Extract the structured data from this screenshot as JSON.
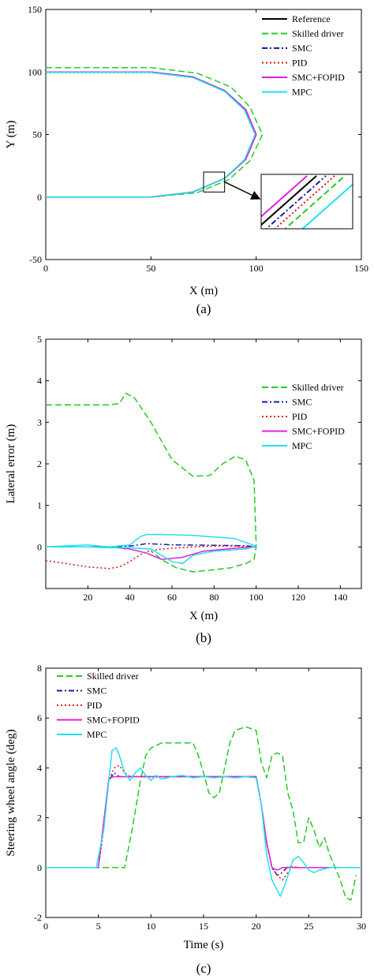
{
  "figure_labels": {
    "a": "(a)",
    "b": "(b)",
    "c": "(c)"
  },
  "colors": {
    "Reference": "#000000",
    "Skilled driver": "#22cc22",
    "SMC": "#1a1aa8",
    "PID": "#e01010",
    "SMC+FOPID": "#e020e0",
    "MPC": "#20e0f0"
  },
  "chart_data": [
    {
      "type": "line",
      "title": "",
      "xlabel": "X (m)",
      "ylabel": "Y (m)",
      "xlim": [
        0,
        150
      ],
      "ylim": [
        -50,
        150
      ],
      "xticks": [
        0,
        50,
        100,
        150
      ],
      "yticks": [
        -50,
        0,
        50,
        100,
        150
      ],
      "grid": false,
      "legend_position": "top-right",
      "legend": [
        "Reference",
        "Skilled driver",
        "SMC",
        "PID",
        "SMC+FOPID",
        "MPC"
      ],
      "inset": {
        "zoom_box_x": [
          75,
          85
        ],
        "zoom_box_y": [
          4,
          20
        ],
        "arrow_to": "bottom-right inset"
      },
      "series": [
        {
          "name": "Reference",
          "style": "solid",
          "x": [
            0,
            50,
            70,
            85,
            95,
            100,
            95,
            85,
            70,
            50,
            0
          ],
          "y": [
            100,
            100,
            96,
            85,
            70,
            50,
            30,
            15,
            4,
            0,
            0
          ]
        },
        {
          "name": "Skilled driver",
          "style": "dashed",
          "x": [
            0,
            50,
            72,
            88,
            97,
            103,
            97,
            87,
            72,
            50,
            0
          ],
          "y": [
            103.5,
            103.5,
            99,
            88,
            72,
            50,
            29,
            14,
            3.5,
            0,
            0
          ]
        },
        {
          "name": "SMC",
          "style": "dashdot",
          "x": [
            0,
            50,
            70,
            85,
            95,
            100,
            95,
            85,
            70,
            50,
            0
          ],
          "y": [
            100,
            100,
            96,
            85,
            70,
            50,
            30,
            15,
            4,
            0,
            0
          ]
        },
        {
          "name": "PID",
          "style": "dotted",
          "x": [
            0,
            50,
            70,
            85,
            95,
            100,
            95,
            85,
            70,
            50,
            0
          ],
          "y": [
            99.5,
            99.5,
            95.5,
            84.5,
            69.5,
            50,
            30,
            15,
            4,
            0,
            0
          ]
        },
        {
          "name": "SMC+FOPID",
          "style": "solid",
          "x": [
            0,
            50,
            70,
            85,
            95,
            100,
            95,
            85,
            70,
            50,
            0
          ],
          "y": [
            100,
            100,
            96,
            85,
            70,
            50,
            30,
            15,
            4,
            0,
            0
          ]
        },
        {
          "name": "MPC",
          "style": "solid",
          "x": [
            0,
            50,
            70,
            85,
            94.5,
            99.5,
            94.5,
            85,
            70,
            50,
            0
          ],
          "y": [
            99.7,
            99.7,
            95.5,
            84.5,
            69.5,
            50,
            30,
            15,
            4,
            0,
            0
          ]
        }
      ]
    },
    {
      "type": "line",
      "title": "",
      "xlabel": "X (m)",
      "ylabel": "Lateral error (m)",
      "xlim": [
        0,
        150
      ],
      "ylim": [
        -1,
        5
      ],
      "xticks": [
        20,
        40,
        60,
        80,
        100,
        120,
        140
      ],
      "yticks": [
        0,
        1,
        2,
        3,
        4,
        5
      ],
      "grid": false,
      "legend_position": "top-right",
      "legend": [
        "Skilled driver",
        "SMC",
        "PID",
        "SMC+FOPID",
        "MPC"
      ],
      "series": [
        {
          "name": "Skilled driver",
          "style": "dashed",
          "x": [
            0,
            30,
            35,
            38,
            42,
            50,
            60,
            70,
            78,
            84,
            90,
            95,
            99,
            100,
            99,
            95,
            88,
            80,
            70,
            62,
            55,
            50
          ],
          "y": [
            3.42,
            3.42,
            3.45,
            3.7,
            3.6,
            3.0,
            2.1,
            1.7,
            1.72,
            2.0,
            2.18,
            2.1,
            1.6,
            0.0,
            -0.3,
            -0.4,
            -0.5,
            -0.55,
            -0.6,
            -0.5,
            -0.3,
            -0.1
          ]
        },
        {
          "name": "SMC",
          "style": "dashdot",
          "x": [
            0,
            30,
            40,
            48,
            60,
            80,
            95,
            100
          ],
          "y": [
            0.0,
            0.0,
            0.02,
            0.08,
            0.05,
            0.04,
            0.03,
            0.0
          ]
        },
        {
          "name": "PID",
          "style": "dotted",
          "x": [
            0,
            10,
            20,
            30,
            35,
            40,
            45,
            50,
            60,
            70,
            80,
            90,
            100
          ],
          "y": [
            -0.33,
            -0.4,
            -0.48,
            -0.52,
            -0.48,
            -0.35,
            -0.18,
            -0.08,
            -0.03,
            0.0,
            0.02,
            0.02,
            0.0
          ]
        },
        {
          "name": "SMC+FOPID",
          "style": "solid",
          "x": [
            0,
            30,
            40,
            48,
            55,
            65,
            75,
            90,
            100
          ],
          "y": [
            0.0,
            0.0,
            -0.05,
            -0.15,
            -0.3,
            -0.25,
            -0.1,
            -0.03,
            0.0
          ]
        },
        {
          "name": "MPC",
          "style": "solid",
          "x": [
            0,
            20,
            30,
            40,
            45,
            48,
            55,
            70,
            90,
            100,
            95,
            80,
            70,
            65,
            60,
            50,
            40,
            30,
            20,
            10,
            0
          ],
          "y": [
            0.0,
            0.05,
            0.0,
            0.05,
            0.25,
            0.3,
            0.3,
            0.28,
            0.2,
            0.02,
            -0.05,
            -0.1,
            -0.2,
            -0.4,
            -0.35,
            -0.05,
            -0.02,
            -0.02,
            0.0,
            0.0,
            0.0
          ]
        }
      ]
    },
    {
      "type": "line",
      "title": "",
      "xlabel": "Time (s)",
      "ylabel": "Steering wheel angle (deg)",
      "xlim": [
        0,
        30
      ],
      "ylim": [
        -2,
        8
      ],
      "xticks": [
        0,
        5,
        10,
        15,
        20,
        25,
        30
      ],
      "yticks": [
        -2,
        0,
        2,
        4,
        6,
        8
      ],
      "grid": false,
      "legend_position": "top-left",
      "legend": [
        "Skilled driver",
        "SMC",
        "PID",
        "SMC+FOPID",
        "MPC"
      ],
      "series": [
        {
          "name": "Skilled driver",
          "style": "dashed",
          "x": [
            0,
            7.5,
            8.2,
            9,
            9.5,
            10,
            11,
            14,
            14.5,
            15,
            15.5,
            16,
            16.5,
            17,
            17.5,
            18,
            19,
            20,
            20.5,
            21,
            21.5,
            22,
            22.5,
            23,
            23.5,
            24,
            24.5,
            25,
            25.5,
            26,
            26.5,
            27,
            27.5,
            28,
            28.5,
            29,
            29.5
          ],
          "y": [
            0,
            0,
            1.5,
            3.5,
            4.5,
            4.8,
            5.0,
            5.0,
            4.5,
            3.8,
            3.0,
            2.8,
            3.0,
            4.0,
            5.0,
            5.5,
            5.65,
            5.5,
            4.2,
            3.6,
            4.5,
            4.6,
            4.5,
            3.0,
            2.3,
            1.0,
            1.0,
            2.0,
            1.5,
            0.8,
            1.2,
            0.5,
            0.0,
            -0.5,
            -1.2,
            -1.3,
            -0.3
          ]
        },
        {
          "name": "SMC",
          "style": "dashdot",
          "x": [
            0,
            5,
            5.5,
            6,
            6.5,
            7,
            20,
            20.5,
            21,
            21.5,
            22,
            22.5,
            23,
            23.5,
            30
          ],
          "y": [
            0,
            0,
            1.8,
            3.5,
            3.8,
            3.65,
            3.65,
            2.5,
            1.0,
            0.0,
            -0.3,
            -0.2,
            0.05,
            0.0,
            0.0
          ]
        },
        {
          "name": "PID",
          "style": "dotted",
          "x": [
            0,
            5,
            5.5,
            6,
            6.5,
            7,
            7.5,
            8,
            20,
            20.5,
            21,
            21.5,
            22,
            22.5,
            23,
            23.5,
            24,
            30
          ],
          "y": [
            0,
            0,
            1.5,
            3.5,
            4.0,
            4.1,
            3.8,
            3.65,
            3.65,
            2.5,
            1.0,
            0.0,
            -0.3,
            -0.5,
            -0.2,
            0.05,
            0.0,
            0.0
          ]
        },
        {
          "name": "SMC+FOPID",
          "style": "solid",
          "x": [
            0,
            5,
            5.5,
            6,
            6.5,
            20,
            20.5,
            21,
            21.5,
            22,
            22.5,
            23,
            30
          ],
          "y": [
            0,
            0,
            1.8,
            3.6,
            3.65,
            3.65,
            2.5,
            1.0,
            0.0,
            -0.1,
            0.0,
            0.0,
            0.0
          ]
        },
        {
          "name": "MPC",
          "style": "solid",
          "x": [
            0,
            4.8,
            5.5,
            6,
            6.3,
            6.7,
            7,
            7.5,
            8,
            8.5,
            9,
            9.5,
            10,
            10.5,
            11,
            12,
            13,
            14,
            15,
            16,
            17,
            18,
            19,
            20,
            20.5,
            21,
            21.5,
            22,
            22.3,
            22.8,
            23.5,
            24,
            24.5,
            25,
            25.5,
            26,
            27,
            30
          ],
          "y": [
            0,
            0,
            1.5,
            3.5,
            4.7,
            4.8,
            4.5,
            3.8,
            3.5,
            3.8,
            4.0,
            3.7,
            3.5,
            3.7,
            3.55,
            3.65,
            3.7,
            3.6,
            3.65,
            3.6,
            3.65,
            3.6,
            3.65,
            3.6,
            2.5,
            0.5,
            -0.5,
            -0.9,
            -1.15,
            -0.6,
            0.3,
            0.45,
            0.2,
            -0.1,
            -0.2,
            -0.1,
            0.0,
            0.0
          ]
        }
      ]
    }
  ]
}
